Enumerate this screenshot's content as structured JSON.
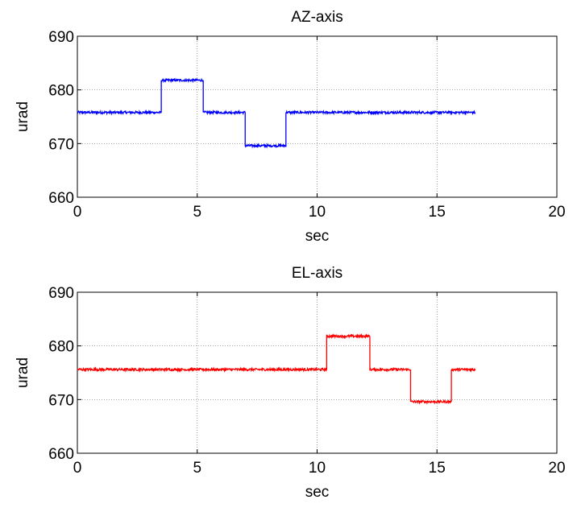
{
  "chart_data": [
    {
      "type": "line",
      "title": "AZ-axis",
      "xlabel": "sec",
      "ylabel": "urad",
      "xlim": [
        0,
        20
      ],
      "ylim": [
        660,
        690
      ],
      "xticks": [
        0,
        5,
        10,
        15,
        20
      ],
      "yticks": [
        660,
        670,
        680,
        690
      ],
      "grid": true,
      "series": [
        {
          "color": "#0000ff",
          "x": [
            0,
            3.5,
            3.5,
            5.25,
            5.25,
            7.0,
            7.0,
            8.7,
            8.7,
            16.6
          ],
          "y": [
            675.8,
            675.8,
            681.8,
            681.8,
            675.8,
            675.8,
            669.6,
            669.6,
            675.8,
            675.8
          ]
        }
      ]
    },
    {
      "type": "line",
      "title": "EL-axis",
      "xlabel": "sec",
      "ylabel": "urad",
      "xlim": [
        0,
        20
      ],
      "ylim": [
        660,
        690
      ],
      "xticks": [
        0,
        5,
        10,
        15,
        20
      ],
      "yticks": [
        660,
        670,
        680,
        690
      ],
      "grid": true,
      "series": [
        {
          "color": "#ff0000",
          "x": [
            0,
            10.4,
            10.4,
            12.2,
            12.2,
            13.9,
            13.9,
            15.6,
            15.6,
            16.6
          ],
          "y": [
            675.6,
            675.6,
            681.8,
            681.8,
            675.6,
            675.6,
            669.6,
            669.6,
            675.6,
            675.6
          ]
        }
      ]
    }
  ]
}
